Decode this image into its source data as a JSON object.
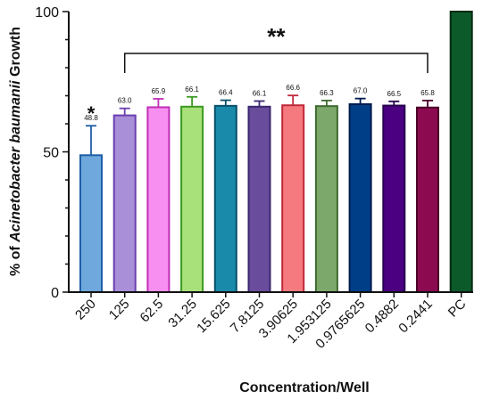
{
  "chart_data": {
    "type": "bar",
    "xlabel": "Concentration/Well",
    "ylabel_parts": [
      "% of ",
      "Acinetobacter baumanii",
      " Growth"
    ],
    "ylim": [
      0,
      100
    ],
    "yticks": [
      0,
      50,
      100
    ],
    "grid": false,
    "categories": [
      "250",
      "125",
      "62.5",
      "31.25",
      "15.625",
      "7.8125",
      "3.90625",
      "1.953125",
      "0.9765625",
      "0.4882",
      "0.2441",
      "PC"
    ],
    "values": [
      48.8,
      63.0,
      65.9,
      66.1,
      66.4,
      66.1,
      66.6,
      66.3,
      67.0,
      66.5,
      65.8,
      100
    ],
    "errors": [
      10.5,
      2.5,
      3.0,
      3.5,
      2.0,
      2.0,
      3.5,
      2.0,
      2.0,
      1.5,
      2.5,
      0
    ],
    "value_labels": [
      "48.8",
      "63.0",
      "65.9",
      "66.1",
      "66.4",
      "66.1",
      "66.6",
      "66.3",
      "67.0",
      "66.5",
      "65.8",
      ""
    ],
    "fill_colors": [
      "#6fa8dc",
      "#a98fd8",
      "#f78ff0",
      "#a8e07a",
      "#1a8aaa",
      "#6a4c9c",
      "#f47a7f",
      "#7da86b",
      "#003f88",
      "#4b0082",
      "#8b0a50",
      "#0c5a2a"
    ],
    "edge_colors": [
      "#1f5fa8",
      "#6a3fb0",
      "#c030b8",
      "#3a9a20",
      "#07506a",
      "#3b2770",
      "#c02838",
      "#3f6a30",
      "#001a4d",
      "#26004d",
      "#4a0028",
      "#042a12"
    ],
    "annotations": {
      "single": {
        "label": "*",
        "category_index": 0
      },
      "bracket": {
        "label": "**",
        "from_index": 1,
        "to_index": 10
      }
    }
  }
}
